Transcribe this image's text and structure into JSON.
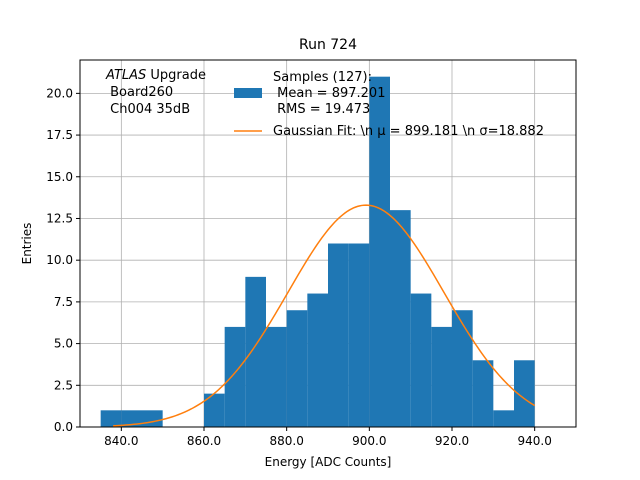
{
  "chart_data": {
    "type": "bar",
    "title": "Run 724",
    "xlabel": "Energy [ADC Counts]",
    "ylabel": "Entries",
    "xlim": [
      830,
      950
    ],
    "ylim": [
      0,
      22
    ],
    "grid": true,
    "xticks": [
      840,
      860,
      880,
      900,
      920,
      940
    ],
    "xtick_labels": [
      "840.0",
      "860.0",
      "880.0",
      "900.0",
      "920.0",
      "940.0"
    ],
    "yticks": [
      0,
      2.5,
      5,
      7.5,
      10,
      12.5,
      15,
      17.5,
      20
    ],
    "ytick_labels": [
      "0.0",
      "2.5",
      "5.0",
      "7.5",
      "10.0",
      "12.5",
      "15.0",
      "17.5",
      "20.0"
    ],
    "bin_width": 5,
    "bins": [
      {
        "x0": 835,
        "count": 1
      },
      {
        "x0": 840,
        "count": 1
      },
      {
        "x0": 845,
        "count": 1
      },
      {
        "x0": 860,
        "count": 2
      },
      {
        "x0": 865,
        "count": 6
      },
      {
        "x0": 870,
        "count": 9
      },
      {
        "x0": 875,
        "count": 6
      },
      {
        "x0": 880,
        "count": 7
      },
      {
        "x0": 885,
        "count": 8
      },
      {
        "x0": 890,
        "count": 11
      },
      {
        "x0": 895,
        "count": 11
      },
      {
        "x0": 900,
        "count": 21
      },
      {
        "x0": 905,
        "count": 13
      },
      {
        "x0": 910,
        "count": 8
      },
      {
        "x0": 915,
        "count": 6
      },
      {
        "x0": 920,
        "count": 7
      },
      {
        "x0": 925,
        "count": 4
      },
      {
        "x0": 930,
        "count": 1
      },
      {
        "x0": 935,
        "count": 4
      }
    ],
    "fit": {
      "type": "gaussian",
      "mu": 899.181,
      "sigma": 18.882,
      "peak": 13.3,
      "x_range": [
        838,
        940
      ]
    },
    "colors": {
      "histogram": "#1f77b4",
      "fit": "#ff7f0e",
      "grid": "#b0b0b0"
    },
    "legend": {
      "placement": "top-center",
      "histogram_lines": [
        "Samples (127):",
        " Mean = 897.201",
        " RMS = 19.473"
      ],
      "fit_label": "Gaussian Fit: \\n μ = 899.181 \\n σ=18.882"
    },
    "annotation": {
      "experiment": "ATLAS",
      "suffix": " Upgrade",
      "line2": " Board260",
      "line3": " Ch004 35dB"
    }
  }
}
